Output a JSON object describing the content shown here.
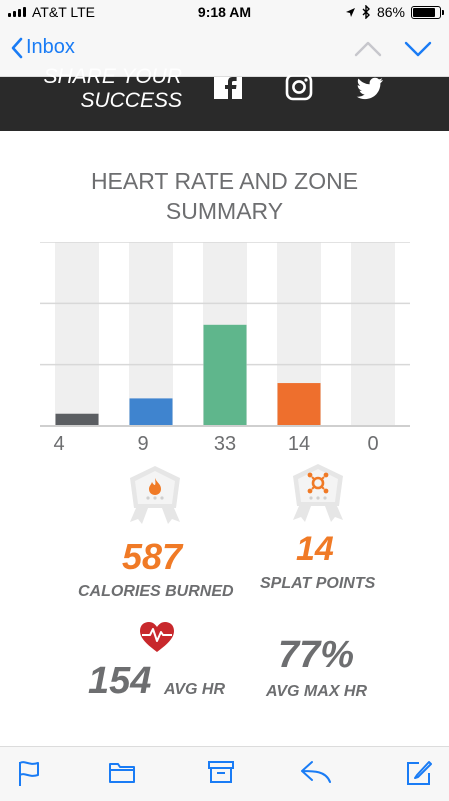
{
  "status_bar": {
    "carrier": "AT&T  LTE",
    "time": "9:18 AM",
    "battery": "86%"
  },
  "nav": {
    "back_label": "Inbox"
  },
  "banner": {
    "share_text": "SHARE YOUR SUCCESS"
  },
  "summary": {
    "title": "HEART RATE AND ZONE SUMMARY"
  },
  "chart_data": {
    "type": "bar",
    "categories": [
      "4",
      "9",
      "33",
      "14",
      "0"
    ],
    "values": [
      4,
      9,
      33,
      14,
      0
    ],
    "colors": [
      "#5b5e62",
      "#3f84cf",
      "#5fb68c",
      "#ee6f2d",
      "#cfcfcf"
    ],
    "ylim": [
      0,
      60
    ],
    "grid": true
  },
  "stats": {
    "calories": {
      "value": "587",
      "label": "CALORIES BURNED"
    },
    "splat": {
      "value": "14",
      "label": "SPLAT POINTS"
    },
    "avg_hr": {
      "value": "154",
      "label": "AVG HR"
    },
    "avg_max_hr": {
      "value": "77%",
      "label": "AVG MAX HR"
    }
  }
}
